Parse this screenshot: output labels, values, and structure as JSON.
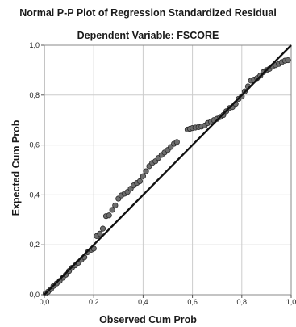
{
  "chart_data": {
    "type": "scatter",
    "title": "Normal P-P Plot of Regression Standardized Residual",
    "subtitle": "Dependent Variable: FSCORE",
    "xlabel": "Observed Cum Prob",
    "ylabel": "Expected Cum Prob",
    "xlim": [
      0,
      1
    ],
    "ylim": [
      0,
      1
    ],
    "grid": true,
    "x_ticks": [
      "0,0",
      "0,2",
      "0,4",
      "0,6",
      "0,8",
      "1,0"
    ],
    "y_ticks": [
      "0,0",
      "0,2",
      "0,4",
      "0,6",
      "0,8",
      "1,0"
    ],
    "reference_line": {
      "from": [
        0,
        0
      ],
      "to": [
        1,
        1
      ]
    },
    "colors": {
      "points": "#6e6e6e",
      "point_stroke": "#2a2a2a",
      "grid": "#cccccc",
      "line": "#111111",
      "frame": "#888888"
    },
    "points": [
      [
        0.005,
        0.005
      ],
      [
        0.015,
        0.012
      ],
      [
        0.027,
        0.022
      ],
      [
        0.037,
        0.035
      ],
      [
        0.05,
        0.045
      ],
      [
        0.062,
        0.055
      ],
      [
        0.075,
        0.068
      ],
      [
        0.087,
        0.08
      ],
      [
        0.1,
        0.095
      ],
      [
        0.112,
        0.108
      ],
      [
        0.125,
        0.118
      ],
      [
        0.137,
        0.128
      ],
      [
        0.15,
        0.14
      ],
      [
        0.162,
        0.15
      ],
      [
        0.175,
        0.17
      ],
      [
        0.19,
        0.18
      ],
      [
        0.2,
        0.185
      ],
      [
        0.212,
        0.235
      ],
      [
        0.225,
        0.245
      ],
      [
        0.237,
        0.265
      ],
      [
        0.25,
        0.315
      ],
      [
        0.262,
        0.318
      ],
      [
        0.275,
        0.34
      ],
      [
        0.287,
        0.358
      ],
      [
        0.3,
        0.385
      ],
      [
        0.312,
        0.398
      ],
      [
        0.325,
        0.405
      ],
      [
        0.337,
        0.412
      ],
      [
        0.35,
        0.425
      ],
      [
        0.362,
        0.438
      ],
      [
        0.375,
        0.448
      ],
      [
        0.387,
        0.455
      ],
      [
        0.4,
        0.475
      ],
      [
        0.412,
        0.495
      ],
      [
        0.425,
        0.515
      ],
      [
        0.437,
        0.528
      ],
      [
        0.45,
        0.535
      ],
      [
        0.462,
        0.548
      ],
      [
        0.475,
        0.56
      ],
      [
        0.487,
        0.57
      ],
      [
        0.5,
        0.58
      ],
      [
        0.512,
        0.592
      ],
      [
        0.525,
        0.605
      ],
      [
        0.537,
        0.612
      ],
      [
        0.58,
        0.662
      ],
      [
        0.59,
        0.665
      ],
      [
        0.6,
        0.668
      ],
      [
        0.612,
        0.67
      ],
      [
        0.625,
        0.672
      ],
      [
        0.637,
        0.674
      ],
      [
        0.65,
        0.678
      ],
      [
        0.662,
        0.688
      ],
      [
        0.675,
        0.694
      ],
      [
        0.687,
        0.7
      ],
      [
        0.7,
        0.705
      ],
      [
        0.712,
        0.712
      ],
      [
        0.725,
        0.72
      ],
      [
        0.737,
        0.735
      ],
      [
        0.75,
        0.748
      ],
      [
        0.762,
        0.752
      ],
      [
        0.775,
        0.765
      ],
      [
        0.787,
        0.785
      ],
      [
        0.8,
        0.795
      ],
      [
        0.812,
        0.815
      ],
      [
        0.825,
        0.835
      ],
      [
        0.837,
        0.858
      ],
      [
        0.85,
        0.862
      ],
      [
        0.862,
        0.868
      ],
      [
        0.875,
        0.878
      ],
      [
        0.887,
        0.892
      ],
      [
        0.9,
        0.9
      ],
      [
        0.912,
        0.905
      ],
      [
        0.925,
        0.915
      ],
      [
        0.937,
        0.92
      ],
      [
        0.95,
        0.925
      ],
      [
        0.962,
        0.932
      ],
      [
        0.975,
        0.938
      ],
      [
        0.987,
        0.94
      ]
    ]
  }
}
